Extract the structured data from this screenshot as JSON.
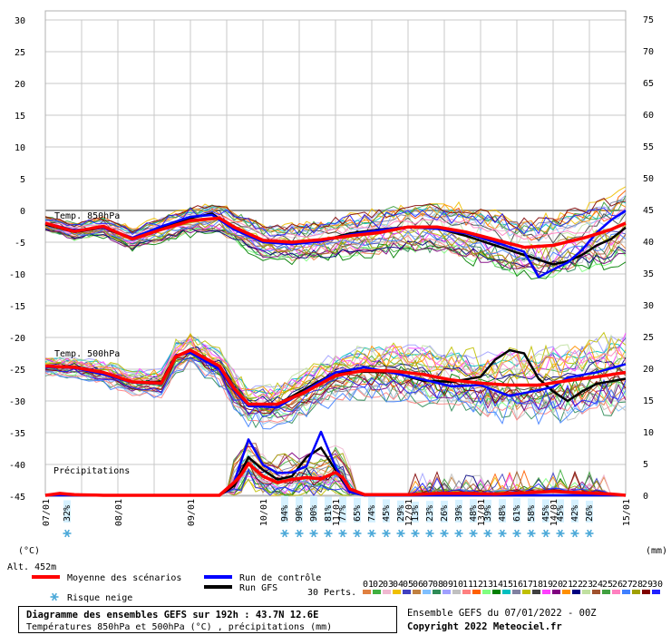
{
  "chart_data": {
    "type": "line",
    "left_axis_ticks": [
      "30",
      "25",
      "20",
      "15",
      "10",
      "5",
      "0",
      "-5",
      "-10",
      "-15",
      "-20",
      "-25",
      "-30",
      "-35",
      "-40",
      "-45"
    ],
    "right_axis_ticks": [
      "75",
      "70",
      "65",
      "60",
      "55",
      "50",
      "45",
      "40",
      "35",
      "30",
      "25",
      "20",
      "15",
      "10",
      "5",
      "0"
    ],
    "left_unit": "(°C)",
    "right_unit": "(mm)",
    "altitude_label": "Alt. 452m",
    "x_labels": [
      "07/01",
      "08/01",
      "09/01",
      "10/01",
      "11/01",
      "12/01",
      "13/01",
      "14/01",
      "15/01"
    ],
    "x_step_hours": 6,
    "labels": {
      "t850": "Temp. 850hPa",
      "t500": "Temp. 500hPa",
      "precip": "Précipitations"
    },
    "snow_risk": [
      {
        "x": 3,
        "value": "32%"
      },
      {
        "x": 33,
        "value": "94%"
      },
      {
        "x": 35,
        "value": "90%"
      },
      {
        "x": 37,
        "value": "90%"
      },
      {
        "x": 39,
        "value": "81%"
      },
      {
        "x": 41,
        "value": "77%"
      },
      {
        "x": 43,
        "value": "65%"
      },
      {
        "x": 45,
        "value": "74%"
      },
      {
        "x": 47,
        "value": "45%"
      },
      {
        "x": 49,
        "value": "29%"
      },
      {
        "x": 51,
        "value": "13%"
      },
      {
        "x": 53,
        "value": "23%"
      },
      {
        "x": 55,
        "value": "26%"
      },
      {
        "x": 57,
        "value": "39%"
      },
      {
        "x": 59,
        "value": "48%"
      },
      {
        "x": 61,
        "value": "39%"
      },
      {
        "x": 63,
        "value": "48%"
      },
      {
        "x": 65,
        "value": "61%"
      },
      {
        "x": 67,
        "value": "58%"
      },
      {
        "x": 69,
        "value": "45%"
      },
      {
        "x": 71,
        "value": "45%"
      },
      {
        "x": 73,
        "value": "42%"
      },
      {
        "x": 75,
        "value": "26%"
      }
    ],
    "series": [
      {
        "name": "Moyenne des scénarios",
        "color": "#ff0000",
        "t850_anchors": [
          [
            0,
            -2
          ],
          [
            4,
            -3.3
          ],
          [
            8,
            -2.5
          ],
          [
            12,
            -4.5
          ],
          [
            16,
            -3
          ],
          [
            20,
            -1.6
          ],
          [
            24,
            -1.2
          ],
          [
            26,
            -2.6
          ],
          [
            30,
            -4.7
          ],
          [
            34,
            -5
          ],
          [
            38,
            -4.6
          ],
          [
            42,
            -4
          ],
          [
            46,
            -3.5
          ],
          [
            50,
            -2.6
          ],
          [
            54,
            -2.6
          ],
          [
            58,
            -3.4
          ],
          [
            62,
            -4.6
          ],
          [
            66,
            -5.8
          ],
          [
            70,
            -5.5
          ],
          [
            74,
            -4.4
          ],
          [
            78,
            -3
          ],
          [
            80,
            -2
          ]
        ],
        "t500_anchors": [
          [
            0,
            -24.5
          ],
          [
            4,
            -24.7
          ],
          [
            8,
            -25.5
          ],
          [
            12,
            -27
          ],
          [
            16,
            -27.2
          ],
          [
            18,
            -23
          ],
          [
            20,
            -22
          ],
          [
            24,
            -24.5
          ],
          [
            26,
            -28
          ],
          [
            28,
            -30.5
          ],
          [
            32,
            -30.5
          ],
          [
            36,
            -28.5
          ],
          [
            40,
            -26
          ],
          [
            44,
            -25.2
          ],
          [
            48,
            -25.3
          ],
          [
            52,
            -25.8
          ],
          [
            56,
            -26.7
          ],
          [
            60,
            -27.2
          ],
          [
            64,
            -27.5
          ],
          [
            68,
            -27.5
          ],
          [
            72,
            -26.8
          ],
          [
            76,
            -26.2
          ],
          [
            80,
            -25.5
          ]
        ],
        "precip_anchors": [
          [
            0,
            0
          ],
          [
            2,
            0.3
          ],
          [
            4,
            0.1
          ],
          [
            8,
            0
          ],
          [
            24,
            0
          ],
          [
            26,
            2
          ],
          [
            27,
            3.2
          ],
          [
            28,
            5
          ],
          [
            30,
            3
          ],
          [
            32,
            2
          ],
          [
            34,
            2.5
          ],
          [
            36,
            2.8
          ],
          [
            38,
            2.6
          ],
          [
            40,
            3.6
          ],
          [
            41,
            2.8
          ],
          [
            42,
            1
          ],
          [
            44,
            0.1
          ],
          [
            50,
            0.1
          ],
          [
            54,
            0.3
          ],
          [
            58,
            0.3
          ],
          [
            62,
            0.2
          ],
          [
            66,
            0.4
          ],
          [
            70,
            0.6
          ],
          [
            74,
            0.4
          ],
          [
            78,
            0.2
          ],
          [
            80,
            0
          ]
        ]
      },
      {
        "name": "Run de contrôle",
        "color": "#0000ff",
        "t850_anchors": [
          [
            0,
            -2
          ],
          [
            4,
            -3.1
          ],
          [
            8,
            -2.7
          ],
          [
            12,
            -4.3
          ],
          [
            16,
            -2.5
          ],
          [
            20,
            -1
          ],
          [
            23,
            -0.7
          ],
          [
            26,
            -3
          ],
          [
            30,
            -5
          ],
          [
            34,
            -5.3
          ],
          [
            38,
            -4.9
          ],
          [
            42,
            -3.8
          ],
          [
            46,
            -3.1
          ],
          [
            50,
            -2.6
          ],
          [
            54,
            -2.9
          ],
          [
            58,
            -3.6
          ],
          [
            62,
            -5
          ],
          [
            66,
            -6.5
          ],
          [
            68,
            -10.5
          ],
          [
            70,
            -9.3
          ],
          [
            72,
            -8.2
          ],
          [
            74,
            -6.2
          ],
          [
            76,
            -3.5
          ],
          [
            78,
            -1.5
          ],
          [
            80,
            0
          ]
        ],
        "t500_anchors": [
          [
            0,
            -24.6
          ],
          [
            4,
            -24.8
          ],
          [
            8,
            -25.8
          ],
          [
            12,
            -27.1
          ],
          [
            16,
            -27.3
          ],
          [
            18,
            -22.8
          ],
          [
            20,
            -22.4
          ],
          [
            24,
            -25
          ],
          [
            26,
            -28.3
          ],
          [
            28,
            -30.8
          ],
          [
            32,
            -31
          ],
          [
            36,
            -28.3
          ],
          [
            40,
            -25.5
          ],
          [
            44,
            -24.7
          ],
          [
            48,
            -25.6
          ],
          [
            52,
            -26.6
          ],
          [
            56,
            -27.7
          ],
          [
            60,
            -27.5
          ],
          [
            64,
            -29.2
          ],
          [
            68,
            -28.3
          ],
          [
            70,
            -27.8
          ],
          [
            72,
            -26.3
          ],
          [
            76,
            -25.5
          ],
          [
            80,
            -24.2
          ]
        ],
        "precip_anchors": [
          [
            0,
            0
          ],
          [
            24,
            0
          ],
          [
            26,
            2
          ],
          [
            28,
            8.8
          ],
          [
            30,
            4.8
          ],
          [
            32,
            3.5
          ],
          [
            34,
            3.6
          ],
          [
            36,
            4.6
          ],
          [
            38,
            10
          ],
          [
            40,
            4.5
          ],
          [
            42,
            0.5
          ],
          [
            44,
            0
          ],
          [
            80,
            0
          ]
        ]
      },
      {
        "name": "Run GFS",
        "color": "#000000",
        "t850_anchors": [
          [
            0,
            -2.2
          ],
          [
            4,
            -3.4
          ],
          [
            8,
            -2.7
          ],
          [
            12,
            -4.5
          ],
          [
            16,
            -2.8
          ],
          [
            20,
            -1.2
          ],
          [
            23,
            -0.5
          ],
          [
            26,
            -3
          ],
          [
            30,
            -4.8
          ],
          [
            34,
            -5.3
          ],
          [
            38,
            -4.8
          ],
          [
            42,
            -3.6
          ],
          [
            46,
            -3
          ],
          [
            50,
            -2.6
          ],
          [
            54,
            -2.8
          ],
          [
            58,
            -4
          ],
          [
            62,
            -5.5
          ],
          [
            66,
            -7
          ],
          [
            70,
            -8.5
          ],
          [
            72,
            -8
          ],
          [
            74,
            -7
          ],
          [
            76,
            -5.5
          ],
          [
            78,
            -4.5
          ],
          [
            80,
            -2.7
          ]
        ],
        "t500_anchors": [
          [
            0,
            -24.5
          ],
          [
            4,
            -24.6
          ],
          [
            8,
            -25.6
          ],
          [
            12,
            -27
          ],
          [
            16,
            -27
          ],
          [
            18,
            -22.8
          ],
          [
            20,
            -22.3
          ],
          [
            24,
            -24.6
          ],
          [
            26,
            -28
          ],
          [
            28,
            -30.5
          ],
          [
            32,
            -30.5
          ],
          [
            36,
            -28
          ],
          [
            40,
            -25.5
          ],
          [
            44,
            -25.4
          ],
          [
            48,
            -25.5
          ],
          [
            52,
            -26.8
          ],
          [
            56,
            -27
          ],
          [
            60,
            -26.2
          ],
          [
            62,
            -23.5
          ],
          [
            64,
            -22
          ],
          [
            66,
            -22.5
          ],
          [
            68,
            -26.5
          ],
          [
            70,
            -28.5
          ],
          [
            72,
            -30
          ],
          [
            74,
            -28.5
          ],
          [
            76,
            -27.3
          ],
          [
            80,
            -26.5
          ]
        ],
        "precip_anchors": [
          [
            0,
            0
          ],
          [
            24,
            0
          ],
          [
            26,
            1.5
          ],
          [
            28,
            6
          ],
          [
            30,
            4
          ],
          [
            32,
            2.5
          ],
          [
            34,
            3
          ],
          [
            36,
            6
          ],
          [
            38,
            7.5
          ],
          [
            40,
            4
          ],
          [
            42,
            0.5
          ],
          [
            44,
            0
          ],
          [
            80,
            0
          ]
        ]
      }
    ]
  },
  "legend": {
    "mean": "Moyenne des scénarios",
    "mean_color": "#ff0000",
    "control": "Run de contrôle",
    "control_color": "#0000ff",
    "gfs": "Run GFS",
    "gfs_color": "#000000",
    "snow": "Risque neige",
    "perts": "30 Perts.",
    "pert_numbers": [
      "01",
      "02",
      "03",
      "04",
      "05",
      "06",
      "07",
      "08",
      "09",
      "10",
      "11",
      "12",
      "13",
      "14",
      "15",
      "16",
      "17",
      "18",
      "19",
      "20",
      "21",
      "22",
      "23",
      "24",
      "25",
      "26",
      "27",
      "28",
      "29",
      "30"
    ],
    "pert_colors": [
      "#e08040",
      "#40b040",
      "#f0b8d0",
      "#f0c000",
      "#4040c0",
      "#c08040",
      "#80c0ff",
      "#2e8b57",
      "#a0a0ff",
      "#c0c0c0",
      "#ff8080",
      "#ff6000",
      "#80ff80",
      "#008000",
      "#00c0c0",
      "#8080a0",
      "#c0c000",
      "#404040",
      "#ff40ff",
      "#800080",
      "#ff9000",
      "#000080",
      "#c0e0a0",
      "#a0522d",
      "#40a040",
      "#ff80c0",
      "#4080ff",
      "#a0a000",
      "#800000",
      "#2020ff"
    ]
  },
  "footer": {
    "title": "Diagramme des ensembles GEFS sur 192h : 43.7N 12.6E",
    "subtitle": "Températures 850hPa et 500hPa (°C) , précipitations (mm)",
    "run_info": "Ensemble GEFS du 07/01/2022 - 00Z",
    "copyright": "Copyright 2022 Meteociel.fr"
  }
}
